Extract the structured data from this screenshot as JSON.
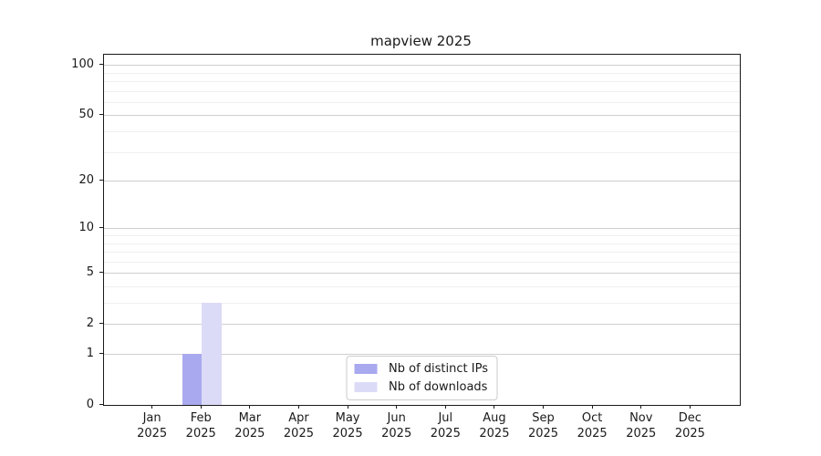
{
  "chart_data": {
    "type": "bar",
    "title": "mapview 2025",
    "categories": [
      "Jan",
      "Feb",
      "Mar",
      "Apr",
      "May",
      "Jun",
      "Jul",
      "Aug",
      "Sep",
      "Oct",
      "Nov",
      "Dec"
    ],
    "x_second_line": "2025",
    "series": [
      {
        "name": "Nb of distinct IPs",
        "color": "#a9a9f0",
        "values": [
          0,
          1,
          0,
          0,
          0,
          0,
          0,
          0,
          0,
          0,
          0,
          0
        ]
      },
      {
        "name": "Nb of downloads",
        "color": "#dbdbf7",
        "values": [
          0,
          3,
          0,
          0,
          0,
          0,
          0,
          0,
          0,
          0,
          0,
          0
        ]
      }
    ],
    "xlabel": "",
    "ylabel": "",
    "y_ticks": [
      0,
      1,
      2,
      5,
      10,
      20,
      50,
      100
    ],
    "y_minor_ticks": [
      3,
      4,
      6,
      7,
      8,
      9,
      30,
      40,
      60,
      70,
      80,
      90
    ],
    "y_scale": "log1p",
    "ylim": [
      0,
      115
    ],
    "grid": "horizontal",
    "legend_position": "lower center",
    "colors": {
      "major_grid": "#cfcfcf",
      "minor_grid": "#efefef",
      "axis": "#1a1a1a",
      "text": "#1a1a1a",
      "background": "#ffffff"
    }
  }
}
